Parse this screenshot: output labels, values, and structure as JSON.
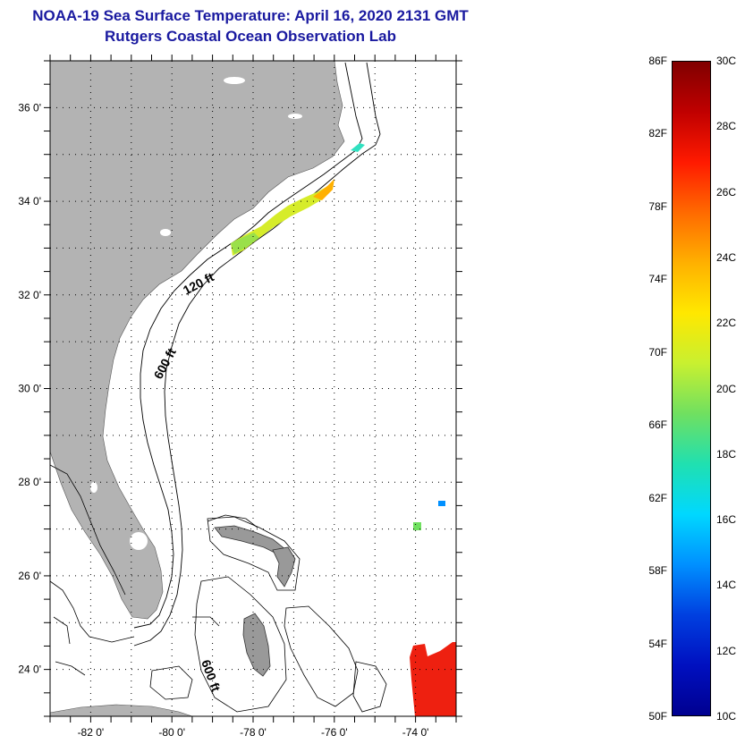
{
  "title": {
    "line1": "NOAA-19 Sea Surface Temperature:  April 16, 2020 2131 GMT",
    "line2": "Rutgers Coastal Ocean Observation Lab"
  },
  "map": {
    "lon_range": [
      -83,
      -73
    ],
    "lat_range": [
      23,
      37
    ],
    "lat_ticks": [
      {
        "lat": 36,
        "label": "36 0'"
      },
      {
        "lat": 34,
        "label": "34 0'"
      },
      {
        "lat": 32,
        "label": "32 0'"
      },
      {
        "lat": 30,
        "label": "30 0'"
      },
      {
        "lat": 28,
        "label": "28 0'"
      },
      {
        "lat": 26,
        "label": "26 0'"
      },
      {
        "lat": 24,
        "label": "24 0'"
      }
    ],
    "lon_ticks": [
      {
        "lon": -82,
        "label": "-82 0'"
      },
      {
        "lon": -80,
        "label": "-80 0'"
      },
      {
        "lon": -78,
        "label": "-78 0'"
      },
      {
        "lon": -76,
        "label": "-76 0'"
      },
      {
        "lon": -74,
        "label": "-74 0'"
      }
    ],
    "contour_labels": [
      "120 ft",
      "600 ft",
      "600 ft"
    ],
    "colors": {
      "land": "#b3b3b3",
      "ocean": "#ffffff",
      "contour": "#000000",
      "grid": "#000000"
    }
  },
  "colorbar": {
    "fahrenheit_labels": [
      "86F",
      "82F",
      "78F",
      "74F",
      "70F",
      "66F",
      "62F",
      "58F",
      "54F",
      "50F"
    ],
    "celsius_labels": [
      "30C",
      "28C",
      "26C",
      "24C",
      "22C",
      "20C",
      "18C",
      "16C",
      "14C",
      "12C",
      "10C"
    ],
    "colors_top_to_bottom": [
      "#800000",
      "#c00000",
      "#ff1a00",
      "#ff6a00",
      "#ffb000",
      "#ffe800",
      "#c8f030",
      "#70e060",
      "#20e0b0",
      "#00d8ff",
      "#0090ff",
      "#0040e0",
      "#0010c0",
      "#000090"
    ]
  }
}
